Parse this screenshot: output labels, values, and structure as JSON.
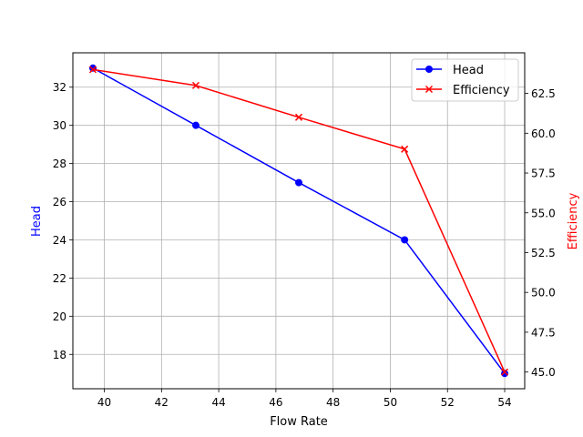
{
  "chart_data": {
    "type": "line",
    "title": "",
    "xlabel": "Flow Rate",
    "ylabel": "Head",
    "y2label": "Efficiency",
    "xlim": [
      38.9,
      54.7
    ],
    "ylim": [
      16.2,
      33.8
    ],
    "y2lim": [
      43.95,
      65.05
    ],
    "x_ticks": [
      40,
      42,
      44,
      46,
      48,
      50,
      52,
      54
    ],
    "y_ticks": [
      18,
      20,
      22,
      24,
      26,
      28,
      30,
      32
    ],
    "y2_ticks": [
      "45.0",
      "47.5",
      "50.0",
      "52.5",
      "55.0",
      "57.5",
      "60.0",
      "62.5"
    ],
    "grid": true,
    "legend_position": "upper right",
    "x": [
      39.6,
      43.2,
      46.8,
      50.5,
      54.0
    ],
    "series": [
      {
        "name": "Head",
        "axis": "left",
        "color": "#0000ff",
        "marker": "circle",
        "values": [
          33,
          30,
          27,
          24,
          17
        ]
      },
      {
        "name": "Efficiency",
        "axis": "right",
        "color": "#ff0000",
        "marker": "x",
        "values": [
          64.0,
          63.0,
          61.0,
          59.0,
          45.0
        ]
      }
    ]
  },
  "colors": {
    "head": "#0000ff",
    "efficiency": "#ff0000",
    "grid": "#b0b0b0",
    "axis": "#000000"
  }
}
